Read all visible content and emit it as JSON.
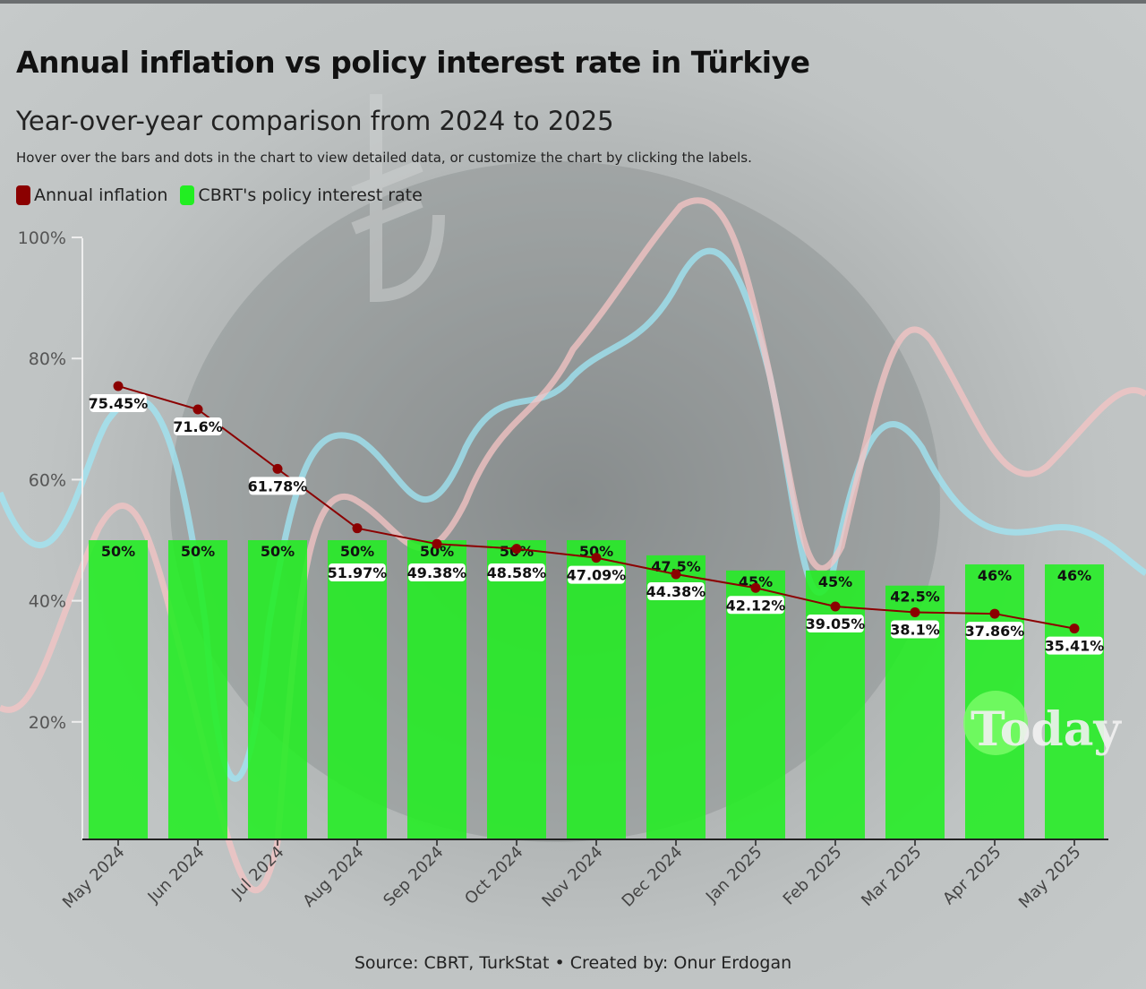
{
  "header": {
    "title": "Annual inflation vs policy interest rate in Türkiye",
    "subtitle": "Year-over-year comparison from 2024 to 2025",
    "note": "Hover over the bars and dots in the chart to view detailed data, or customize the chart by clicking the labels."
  },
  "footer": {
    "source": "Source: CBRT, TurkStat • Created by: Onur Erdogan"
  },
  "watermark": "Today",
  "chart_data": {
    "type": "bar+line",
    "title": "Annual inflation vs policy interest rate in Türkiye",
    "categories": [
      "May 2024",
      "Jun 2024",
      "Jul 2024",
      "Aug 2024",
      "Sep 2024",
      "Oct 2024",
      "Nov 2024",
      "Dec 2024",
      "Jan 2025",
      "Feb 2025",
      "Mar 2025",
      "Apr 2025",
      "May 2025"
    ],
    "series": [
      {
        "name": "Annual inflation",
        "type": "line",
        "color": "#8b0000",
        "values": [
          75.45,
          71.6,
          61.78,
          51.97,
          49.38,
          48.58,
          47.09,
          44.38,
          42.12,
          39.05,
          38.1,
          37.86,
          35.41
        ],
        "labels": [
          "75.45%",
          "71.6%",
          "61.78%",
          "51.97%",
          "49.38%",
          "48.58%",
          "47.09%",
          "44.38%",
          "42.12%",
          "39.05%",
          "38.1%",
          "37.86%",
          "35.41%"
        ]
      },
      {
        "name": "CBRT's policy interest rate",
        "type": "bar",
        "color": "#22ee22",
        "values": [
          50,
          50,
          50,
          50,
          50,
          50,
          50,
          47.5,
          45,
          45,
          42.5,
          46,
          46
        ],
        "labels": [
          "50%",
          "50%",
          "50%",
          "50%",
          "50%",
          "50%",
          "50%",
          "47.5%",
          "45%",
          "45%",
          "42.5%",
          "46%",
          "46%"
        ]
      }
    ],
    "yticks": [
      "20%",
      "40%",
      "60%",
      "80%",
      "100%"
    ],
    "ytick_values": [
      20,
      40,
      60,
      80,
      100
    ],
    "ylim": [
      0,
      100
    ],
    "legend": "top-left"
  }
}
